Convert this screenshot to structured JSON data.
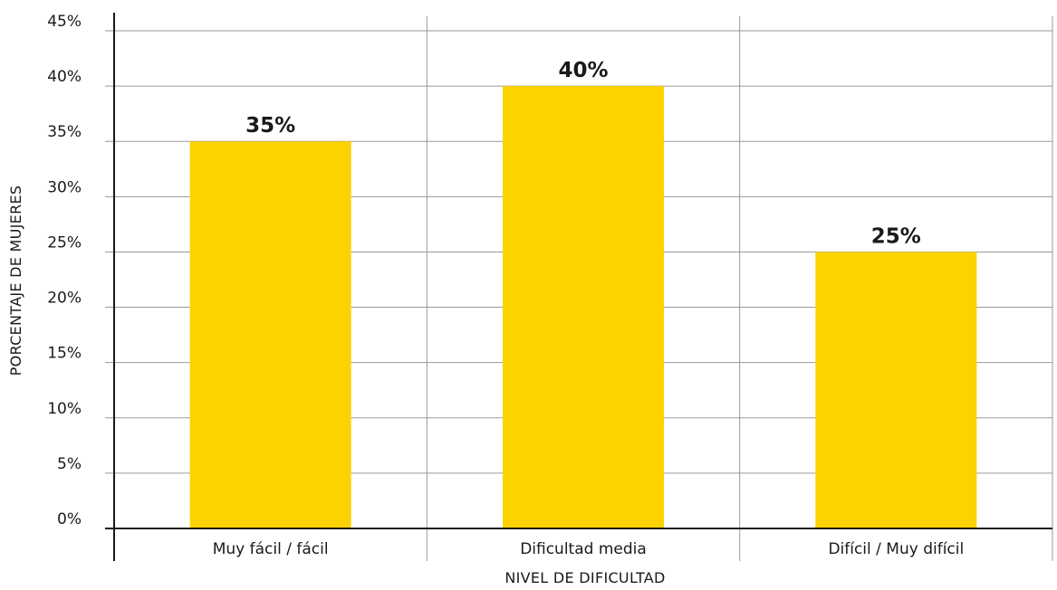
{
  "chart_data": {
    "type": "bar",
    "categories": [
      "Muy fácil / fácil",
      "Dificultad media",
      "Difícil / Muy difícil"
    ],
    "values": [
      35,
      40,
      25
    ],
    "data_labels": [
      "35%",
      "40%",
      "25%"
    ],
    "title": "",
    "xlabel": "NIVEL DE DIFICULTAD",
    "ylabel": "PORCENTAJE DE MUJERES",
    "ylim": [
      0,
      45
    ],
    "yticks": [
      0,
      5,
      10,
      15,
      20,
      25,
      30,
      35,
      40,
      45
    ],
    "ytick_labels": [
      "0%",
      "5%",
      "10%",
      "15%",
      "20%",
      "25%",
      "30%",
      "35%",
      "40%",
      "45%"
    ],
    "grid": true,
    "bar_color": "#FCD200",
    "grid_color": "#9a9a9a",
    "axis_color": "#1a1a1a"
  }
}
